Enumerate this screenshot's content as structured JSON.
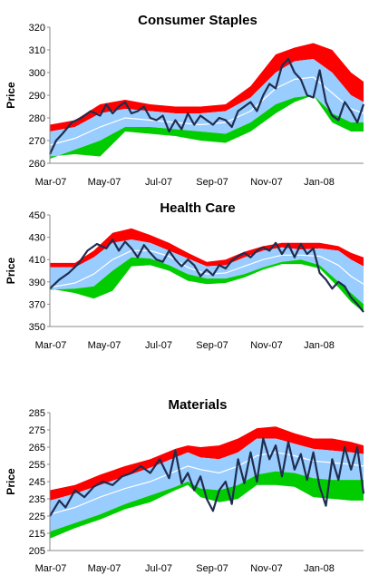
{
  "chart_data": [
    {
      "type": "area",
      "title": "Consumer Staples",
      "ylabel": "Price",
      "ylim": [
        260,
        320
      ],
      "yticks": [
        260,
        270,
        280,
        290,
        300,
        310,
        320
      ],
      "xticks": [
        "Mar-07",
        "May-07",
        "Jul-07",
        "Sep-07",
        "Nov-07",
        "Jan-08"
      ],
      "grid": false,
      "colors": {
        "upper_band": "#ff0000",
        "inner_band": "#99ccff",
        "lower_band": "#00cc00",
        "mean_line": "#ffffff",
        "price_line": "#1f2d4f"
      },
      "bands": {
        "x": [
          0,
          0.08,
          0.16,
          0.24,
          0.32,
          0.4,
          0.48,
          0.56,
          0.64,
          0.72,
          0.78,
          0.84,
          0.9,
          0.96,
          1.0
        ],
        "red_top": [
          277,
          279,
          286,
          288,
          286,
          285,
          285,
          286,
          294,
          308,
          311,
          313,
          310,
          300,
          296
        ],
        "blue_top": [
          274,
          276,
          282,
          284,
          283,
          282,
          282,
          283,
          289,
          300,
          305,
          306,
          300,
          290,
          287
        ],
        "mean": [
          268,
          271,
          276,
          280,
          279,
          278,
          277,
          278,
          283,
          293,
          297,
          298,
          291,
          284,
          282
        ],
        "blue_bot": [
          262,
          266,
          270,
          276,
          276,
          275,
          274,
          273,
          278,
          286,
          289,
          290,
          282,
          278,
          278
        ],
        "green_bot": [
          263,
          264,
          263,
          274,
          273,
          272,
          270,
          269,
          274,
          282,
          287,
          290,
          278,
          274,
          274
        ]
      },
      "price": {
        "x": [
          0,
          0.02,
          0.04,
          0.07,
          0.1,
          0.13,
          0.16,
          0.18,
          0.2,
          0.22,
          0.24,
          0.26,
          0.28,
          0.3,
          0.32,
          0.34,
          0.36,
          0.38,
          0.4,
          0.42,
          0.44,
          0.46,
          0.48,
          0.5,
          0.52,
          0.54,
          0.56,
          0.58,
          0.6,
          0.62,
          0.64,
          0.66,
          0.68,
          0.7,
          0.72,
          0.74,
          0.76,
          0.78,
          0.8,
          0.82,
          0.84,
          0.86,
          0.88,
          0.9,
          0.92,
          0.94,
          0.96,
          0.98,
          1.0
        ],
        "y": [
          264,
          270,
          273,
          278,
          280,
          283,
          281,
          286,
          282,
          285,
          287,
          282,
          283,
          285,
          280,
          279,
          281,
          274,
          279,
          275,
          282,
          277,
          281,
          279,
          277,
          280,
          279,
          276,
          283,
          285,
          287,
          283,
          290,
          295,
          293,
          303,
          306,
          300,
          297,
          290,
          289,
          301,
          287,
          281,
          279,
          287,
          283,
          278,
          286
        ]
      }
    },
    {
      "type": "area",
      "title": "Health Care",
      "ylabel": "Price",
      "ylim": [
        350,
        450
      ],
      "yticks": [
        350,
        370,
        390,
        410,
        430,
        450
      ],
      "xticks": [
        "Mar-07",
        "May-07",
        "Jul-07",
        "Sep-07",
        "Nov-07",
        "Jan-08"
      ],
      "grid": false,
      "colors": {
        "upper_band": "#ff0000",
        "inner_band": "#99ccff",
        "lower_band": "#00cc00",
        "mean_line": "#ffffff",
        "price_line": "#1f2d4f"
      },
      "bands": {
        "x": [
          0,
          0.08,
          0.14,
          0.2,
          0.26,
          0.32,
          0.38,
          0.44,
          0.5,
          0.56,
          0.62,
          0.68,
          0.74,
          0.8,
          0.86,
          0.92,
          0.96,
          1.0
        ],
        "red_top": [
          407,
          407,
          418,
          434,
          438,
          432,
          425,
          416,
          408,
          410,
          417,
          422,
          425,
          425,
          425,
          422,
          416,
          412
        ],
        "blue_top": [
          403,
          403,
          412,
          425,
          428,
          425,
          418,
          411,
          404,
          405,
          412,
          418,
          421,
          419,
          420,
          418,
          410,
          404
        ],
        "mean": [
          385,
          389,
          397,
          410,
          418,
          418,
          413,
          403,
          397,
          398,
          404,
          410,
          414,
          414,
          413,
          405,
          395,
          388
        ],
        "blue_bot": [
          383,
          384,
          386,
          400,
          412,
          411,
          405,
          397,
          393,
          393,
          397,
          403,
          408,
          410,
          405,
          390,
          380,
          370
        ],
        "green_bot": [
          384,
          380,
          375,
          382,
          404,
          405,
          400,
          391,
          388,
          389,
          394,
          401,
          406,
          406,
          402,
          385,
          372,
          363
        ]
      },
      "price": {
        "x": [
          0,
          0.03,
          0.06,
          0.09,
          0.12,
          0.15,
          0.18,
          0.2,
          0.22,
          0.24,
          0.26,
          0.28,
          0.3,
          0.32,
          0.34,
          0.36,
          0.38,
          0.4,
          0.42,
          0.44,
          0.46,
          0.48,
          0.5,
          0.52,
          0.54,
          0.56,
          0.58,
          0.6,
          0.62,
          0.64,
          0.66,
          0.68,
          0.7,
          0.72,
          0.74,
          0.76,
          0.78,
          0.8,
          0.82,
          0.84,
          0.86,
          0.88,
          0.9,
          0.92,
          0.94,
          0.96,
          0.98,
          1.0
        ],
        "y": [
          384,
          392,
          398,
          406,
          418,
          424,
          420,
          428,
          418,
          426,
          420,
          412,
          423,
          416,
          410,
          408,
          418,
          410,
          404,
          410,
          405,
          395,
          401,
          396,
          405,
          402,
          409,
          413,
          416,
          412,
          418,
          421,
          418,
          425,
          415,
          424,
          412,
          424,
          415,
          420,
          398,
          392,
          384,
          390,
          386,
          376,
          370,
          363
        ]
      }
    },
    {
      "type": "area",
      "title": "Materials",
      "ylabel": "Price",
      "ylim": [
        205,
        285
      ],
      "yticks": [
        205,
        215,
        225,
        235,
        245,
        255,
        265,
        275,
        285
      ],
      "xticks": [
        "Mar-07",
        "May-07",
        "Jul-07",
        "Sep-07",
        "Nov-07",
        "Jan-08"
      ],
      "grid": false,
      "colors": {
        "upper_band": "#ff0000",
        "inner_band": "#99ccff",
        "lower_band": "#00cc00",
        "mean_line": "#ffffff",
        "price_line": "#1f2d4f"
      },
      "bands": {
        "x": [
          0,
          0.08,
          0.16,
          0.24,
          0.32,
          0.4,
          0.44,
          0.48,
          0.54,
          0.6,
          0.66,
          0.72,
          0.78,
          0.84,
          0.9,
          0.96,
          1.0
        ],
        "red_top": [
          240,
          243,
          249,
          254,
          258,
          264,
          266,
          265,
          266,
          270,
          276,
          277,
          273,
          270,
          270,
          268,
          266
        ],
        "blue_top": [
          234,
          238,
          243,
          248,
          253,
          259,
          262,
          259,
          258,
          262,
          270,
          270,
          267,
          264,
          263,
          262,
          261
        ],
        "mean": [
          226,
          230,
          236,
          241,
          245,
          251,
          254,
          252,
          250,
          254,
          260,
          262,
          260,
          257,
          256,
          255,
          254
        ],
        "blue_bot": [
          216,
          221,
          226,
          232,
          237,
          242,
          245,
          241,
          240,
          243,
          249,
          251,
          250,
          247,
          246,
          246,
          246
        ],
        "green_bot": [
          212,
          218,
          223,
          229,
          233,
          240,
          243,
          236,
          233,
          235,
          243,
          243,
          242,
          236,
          235,
          234,
          234
        ]
      },
      "price": {
        "x": [
          0,
          0.03,
          0.05,
          0.08,
          0.11,
          0.14,
          0.17,
          0.2,
          0.23,
          0.26,
          0.29,
          0.32,
          0.35,
          0.38,
          0.4,
          0.42,
          0.44,
          0.46,
          0.48,
          0.5,
          0.52,
          0.54,
          0.56,
          0.58,
          0.6,
          0.62,
          0.64,
          0.66,
          0.68,
          0.7,
          0.72,
          0.74,
          0.76,
          0.78,
          0.8,
          0.82,
          0.84,
          0.86,
          0.88,
          0.9,
          0.92,
          0.94,
          0.96,
          0.98,
          1.0
        ],
        "y": [
          225,
          234,
          230,
          240,
          236,
          242,
          245,
          243,
          248,
          250,
          254,
          250,
          258,
          247,
          263,
          244,
          250,
          240,
          248,
          235,
          228,
          240,
          245,
          232,
          258,
          244,
          262,
          245,
          270,
          258,
          266,
          248,
          268,
          252,
          261,
          246,
          262,
          242,
          231,
          258,
          246,
          265,
          252,
          265,
          238
        ]
      }
    }
  ]
}
